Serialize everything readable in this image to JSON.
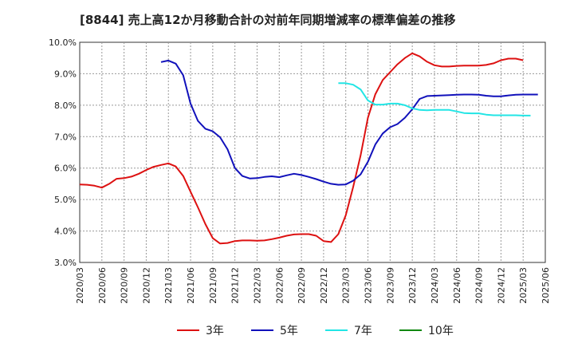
{
  "chart_data": {
    "type": "line",
    "title": "[8844]  売上高12か月移動合計の対前年同期増減率の標準偏差の推移",
    "xlabel": "",
    "ylabel": "",
    "ylim": [
      3.0,
      10.0
    ],
    "yticks": [
      "3.0%",
      "4.0%",
      "5.0%",
      "6.0%",
      "7.0%",
      "8.0%",
      "9.0%",
      "10.0%"
    ],
    "ytick_values": [
      3,
      4,
      5,
      6,
      7,
      8,
      9,
      10
    ],
    "xticks": [
      "2020/03",
      "2020/06",
      "2020/09",
      "2020/12",
      "2021/03",
      "2021/06",
      "2021/09",
      "2021/12",
      "2022/03",
      "2022/06",
      "2022/09",
      "2022/12",
      "2023/03",
      "2023/06",
      "2023/09",
      "2023/12",
      "2024/03",
      "2024/06",
      "2024/09",
      "2024/12",
      "2025/03",
      "2025/06"
    ],
    "x_start": "2020/03",
    "x_end": "2025/06",
    "grid": true,
    "legend_position": "bottom",
    "series": [
      {
        "name": "3年",
        "color": "#dd1111",
        "start": "2020/03",
        "values": [
          5.48,
          5.47,
          5.44,
          5.38,
          5.5,
          5.66,
          5.68,
          5.73,
          5.82,
          5.94,
          6.04,
          6.1,
          6.15,
          6.05,
          5.75,
          5.25,
          4.75,
          4.22,
          3.77,
          3.6,
          3.62,
          3.68,
          3.7,
          3.7,
          3.69,
          3.7,
          3.74,
          3.79,
          3.85,
          3.89,
          3.9,
          3.9,
          3.85,
          3.68,
          3.65,
          3.9,
          4.5,
          5.4,
          6.4,
          7.6,
          8.35,
          8.8,
          9.05,
          9.3,
          9.5,
          9.65,
          9.55,
          9.38,
          9.27,
          9.23,
          9.23,
          9.25,
          9.26,
          9.26,
          9.26,
          9.28,
          9.33,
          9.43,
          9.48,
          9.48,
          9.43
        ]
      },
      {
        "name": "5年",
        "color": "#1111bb",
        "start": "2021/02",
        "values": [
          9.37,
          9.42,
          9.32,
          8.95,
          8.05,
          7.5,
          7.25,
          7.17,
          6.98,
          6.6,
          6.0,
          5.75,
          5.67,
          5.68,
          5.72,
          5.74,
          5.71,
          5.77,
          5.82,
          5.78,
          5.72,
          5.65,
          5.57,
          5.5,
          5.47,
          5.48,
          5.6,
          5.8,
          6.2,
          6.75,
          7.1,
          7.3,
          7.4,
          7.6,
          7.87,
          8.2,
          8.29,
          8.3,
          8.31,
          8.32,
          8.33,
          8.34,
          8.34,
          8.33,
          8.3,
          8.28,
          8.28,
          8.31,
          8.33,
          8.34,
          8.34,
          8.34
        ]
      },
      {
        "name": "7年",
        "color": "#22e5e5",
        "start": "2023/02",
        "values": [
          8.7,
          8.7,
          8.65,
          8.5,
          8.15,
          8.02,
          8.02,
          8.05,
          8.05,
          8.0,
          7.9,
          7.85,
          7.84,
          7.85,
          7.85,
          7.85,
          7.8,
          7.75,
          7.74,
          7.74,
          7.7,
          7.68,
          7.68,
          7.68,
          7.68,
          7.67,
          7.67
        ]
      },
      {
        "name": "10年",
        "color": "#118811",
        "start": "2025/03",
        "values": []
      }
    ]
  }
}
